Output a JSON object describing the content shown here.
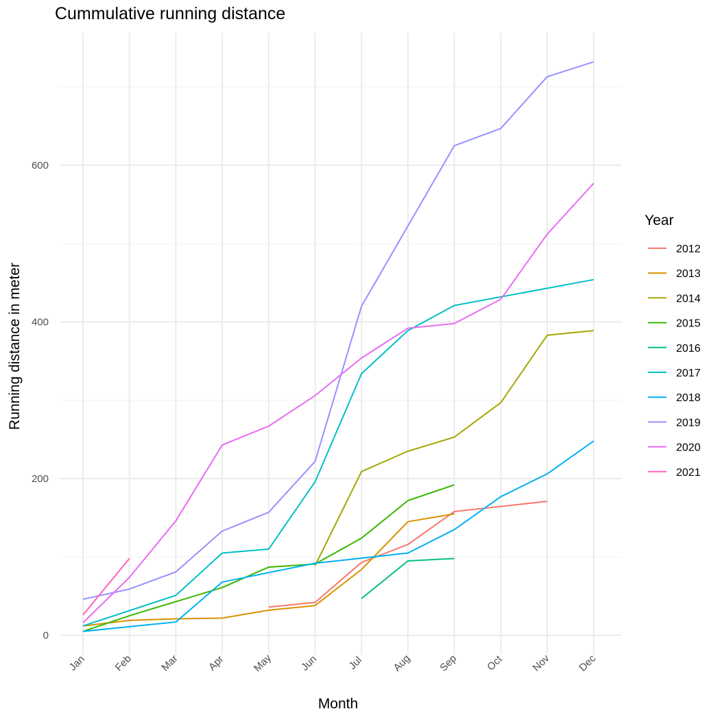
{
  "chart_data": {
    "type": "line",
    "title": "Cummulative running distance",
    "xlabel": "Month",
    "ylabel": "Running distance in meter",
    "categories": [
      "Jan",
      "Feb",
      "Mar",
      "Apr",
      "May",
      "Jun",
      "Jul",
      "Aug",
      "Sep",
      "Oct",
      "Nov",
      "Dec"
    ],
    "yticks": [
      0,
      200,
      400,
      600
    ],
    "ylim": [
      -25,
      770
    ],
    "grid": true,
    "legend_title": "Year",
    "legend_position": "right",
    "series": [
      {
        "name": "2012",
        "color": "#F8766D",
        "values": [
          null,
          null,
          null,
          null,
          36,
          42,
          93,
          116,
          158,
          null,
          171,
          null
        ]
      },
      {
        "name": "2013",
        "color": "#D89000",
        "values": [
          12,
          19,
          21,
          22,
          32,
          38,
          84,
          145,
          155,
          null,
          null,
          null
        ]
      },
      {
        "name": "2014",
        "color": "#A3A500",
        "values": [
          null,
          null,
          null,
          null,
          null,
          89,
          209,
          235,
          253,
          297,
          383,
          389
        ]
      },
      {
        "name": "2015",
        "color": "#39B600",
        "values": [
          5,
          25,
          43,
          61,
          87,
          91,
          124,
          172,
          192,
          null,
          null,
          null
        ]
      },
      {
        "name": "2016",
        "color": "#00BF7D",
        "values": [
          null,
          null,
          null,
          null,
          null,
          null,
          47,
          95,
          98,
          null,
          null,
          null
        ]
      },
      {
        "name": "2017",
        "color": "#00BFC4",
        "values": [
          12,
          null,
          51,
          105,
          110,
          196,
          334,
          389,
          421,
          null,
          null,
          454
        ]
      },
      {
        "name": "2018",
        "color": "#00B0F6",
        "values": [
          5,
          11,
          17,
          68,
          null,
          92,
          null,
          105,
          135,
          177,
          206,
          248
        ]
      },
      {
        "name": "2019",
        "color": "#9590FF",
        "values": [
          46,
          59,
          81,
          133,
          157,
          222,
          420,
          null,
          625,
          647,
          713,
          732
        ]
      },
      {
        "name": "2020",
        "color": "#E76BF3",
        "values": [
          16,
          74,
          146,
          243,
          267,
          306,
          354,
          392,
          398,
          429,
          512,
          577
        ]
      },
      {
        "name": "2021",
        "color": "#FF62BC",
        "values": [
          26,
          98,
          null,
          null,
          null,
          null,
          null,
          null,
          null,
          null,
          null,
          null
        ]
      }
    ]
  }
}
